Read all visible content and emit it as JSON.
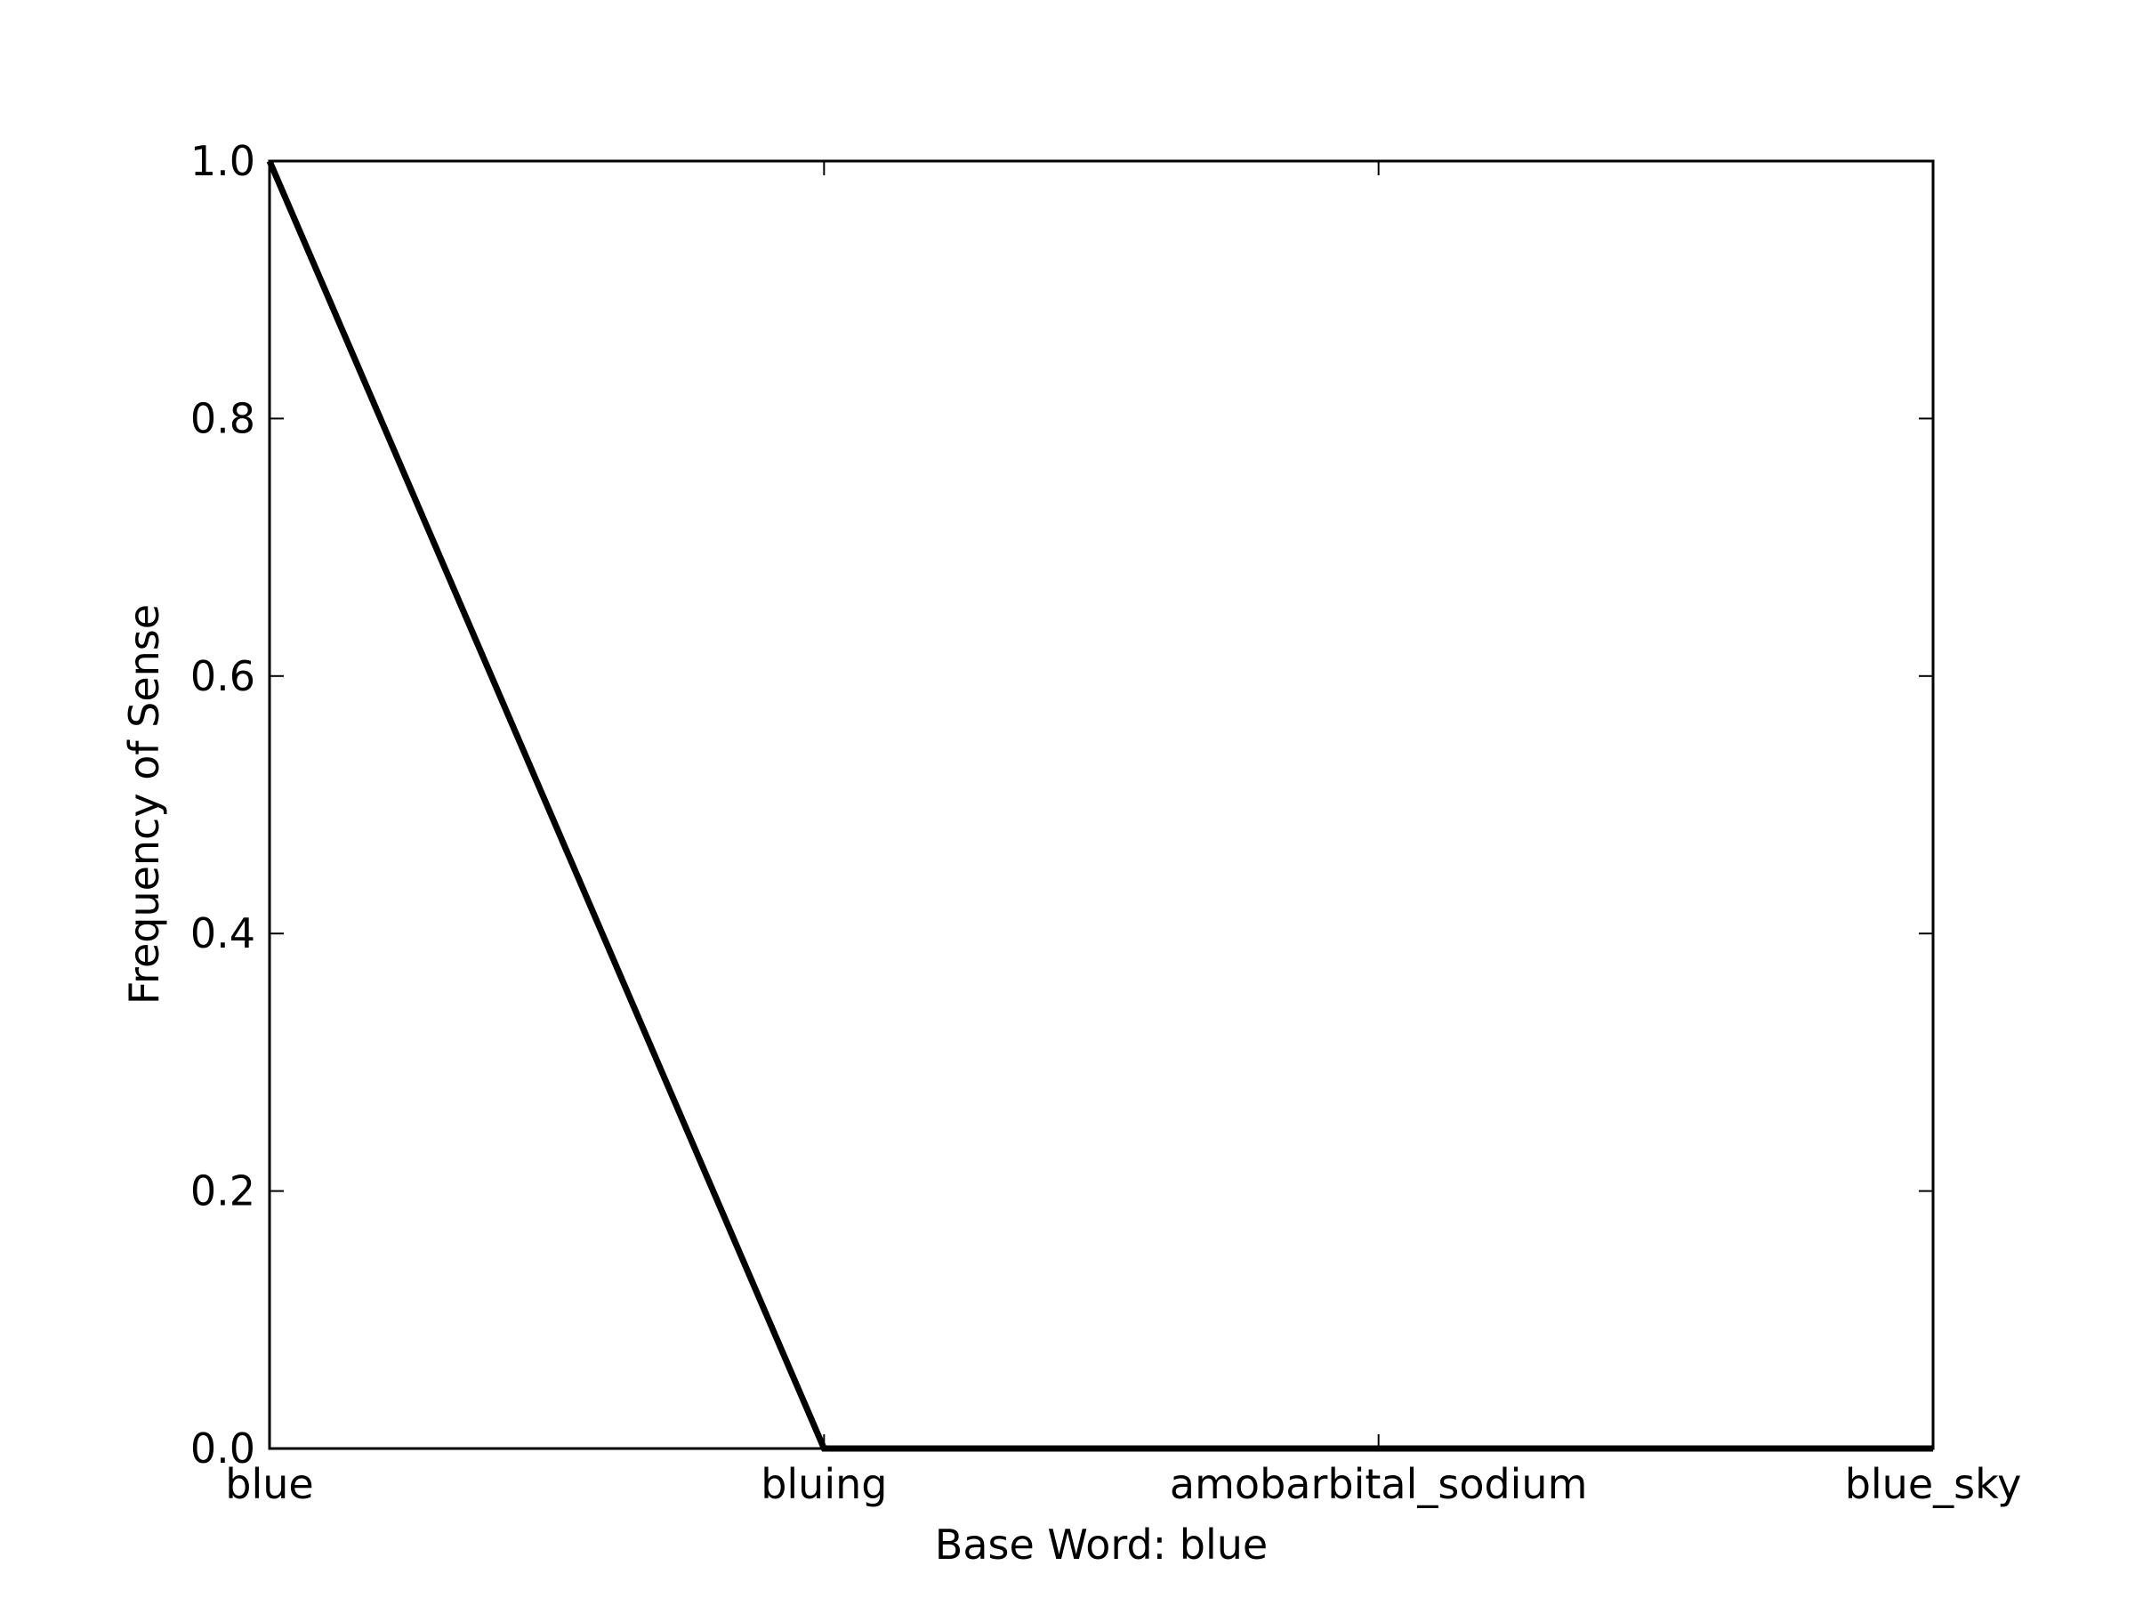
{
  "chart_data": {
    "type": "line",
    "title": "",
    "xlabel": "Base Word: blue",
    "ylabel": "Frequency of Sense",
    "categories": [
      "blue",
      "bluing",
      "amobarbital_sodium",
      "blue_sky"
    ],
    "series": [
      {
        "values": [
          1.0,
          0.0,
          0.0,
          0.0
        ]
      }
    ],
    "ylim": [
      0.0,
      1.0
    ],
    "yticks": [
      0.0,
      0.2,
      0.4,
      0.6,
      0.8,
      1.0
    ],
    "ytick_labels": [
      "0.0",
      "0.2",
      "0.4",
      "0.6",
      "0.8",
      "1.0"
    ],
    "grid": false,
    "line_color": "#000000"
  }
}
